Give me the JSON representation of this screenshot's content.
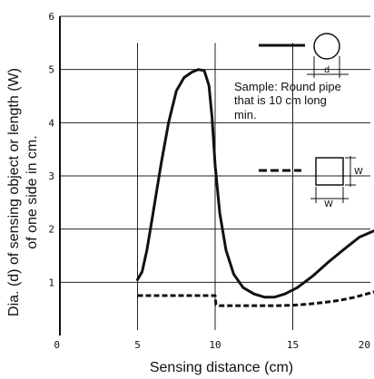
{
  "chart_data": {
    "type": "line",
    "xlabel": "Sensing distance (cm)",
    "ylabel_line1": "Dia. (d) of sensing object or length (W)",
    "ylabel_line2": "of one side in cm.",
    "xlim": [
      0,
      20
    ],
    "ylim": [
      0,
      6
    ],
    "x_ticks": [
      "0",
      "5",
      "10",
      "15",
      "20"
    ],
    "y_ticks": [
      "1",
      "2",
      "3",
      "4",
      "5",
      "6"
    ],
    "grid": true,
    "annotation": {
      "lines": [
        "Sample: Round pipe",
        "that is 10 cm long",
        "min."
      ],
      "round_dim_label": "d",
      "square_dim_label_v": "W",
      "square_dim_label_h": "W"
    },
    "series": [
      {
        "style": "solid",
        "x": [
          5.0,
          5.3,
          5.6,
          6.0,
          6.5,
          7.0,
          7.5,
          8.0,
          8.5,
          8.9,
          9.3,
          9.6,
          9.8,
          10.0,
          10.3,
          10.7,
          11.2,
          11.8,
          12.5,
          13.2,
          13.8,
          14.5,
          15.3,
          16.3,
          17.3,
          18.3,
          19.3,
          20.5
        ],
        "y": [
          1.05,
          1.2,
          1.6,
          2.3,
          3.2,
          4.0,
          4.6,
          4.85,
          4.95,
          5.0,
          4.98,
          4.7,
          4.1,
          3.2,
          2.3,
          1.6,
          1.15,
          0.9,
          0.78,
          0.72,
          0.72,
          0.78,
          0.9,
          1.12,
          1.38,
          1.62,
          1.85,
          2.0
        ]
      },
      {
        "style": "dashed",
        "x": [
          5.0,
          6.0,
          7.0,
          8.0,
          9.0,
          10.0,
          10.05,
          10.3,
          11.0,
          12.0,
          13.0,
          14.0,
          15.0,
          16.0,
          17.0,
          18.0,
          19.0,
          20.0,
          20.5
        ],
        "y": [
          0.75,
          0.75,
          0.75,
          0.75,
          0.75,
          0.75,
          0.58,
          0.56,
          0.56,
          0.56,
          0.56,
          0.56,
          0.57,
          0.59,
          0.62,
          0.66,
          0.72,
          0.8,
          0.84
        ]
      }
    ]
  }
}
